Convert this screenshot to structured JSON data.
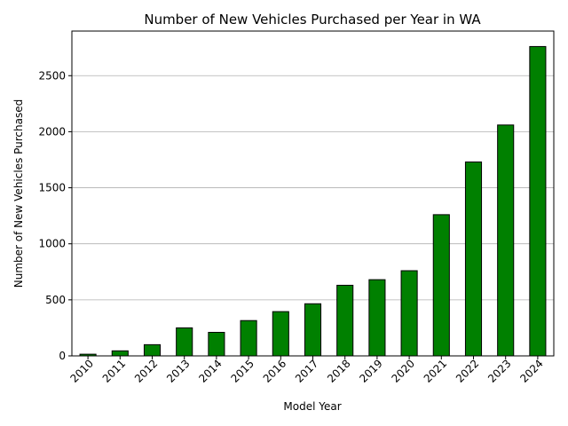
{
  "chart_data": {
    "type": "bar",
    "title": "Number of New Vehicles Purchased per Year in WA",
    "xlabel": "Model Year",
    "ylabel": "Number of New Vehicles Purchased",
    "categories": [
      "2010",
      "2011",
      "2012",
      "2013",
      "2014",
      "2015",
      "2016",
      "2017",
      "2018",
      "2019",
      "2020",
      "2021",
      "2022",
      "2023",
      "2024"
    ],
    "values": [
      15,
      45,
      100,
      250,
      210,
      315,
      395,
      465,
      630,
      680,
      760,
      1260,
      1730,
      2060,
      2760
    ],
    "yticks": [
      0,
      500,
      1000,
      1500,
      2000,
      2500
    ],
    "ylim": [
      0,
      2898
    ],
    "grid": "y-axis only",
    "bar_color": "#008000",
    "edge_color": "#000000",
    "grid_color": "#b0b0b0"
  }
}
